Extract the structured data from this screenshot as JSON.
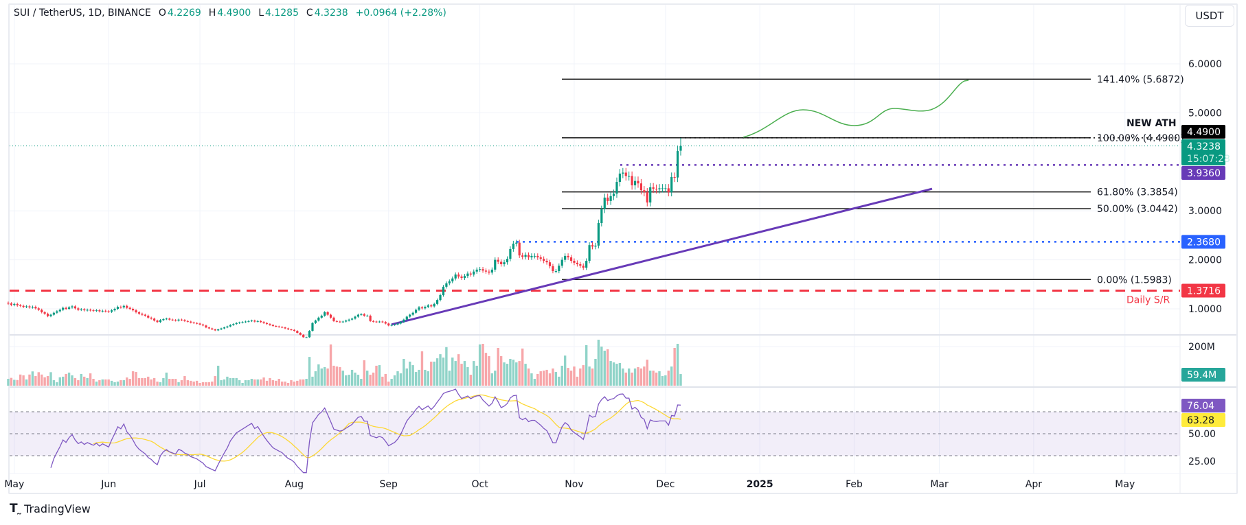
{
  "header": {
    "symbol": "SUI / TetherUS, 1D, BINANCE",
    "open_label": "O",
    "open": "4.2269",
    "high_label": "H",
    "high": "4.4900",
    "low_label": "L",
    "low": "4.1285",
    "close_label": "C",
    "close": "4.3238",
    "change": "+0.0964 (+2.28%)"
  },
  "currency_button": "USDT",
  "branding": "TradingView",
  "colors": {
    "up": "#089981",
    "down": "#f23645",
    "vol_up": "#8fd3c8",
    "vol_down": "#f7a6a9",
    "rsi": "#7e57c2",
    "rsi_ma": "#fdd835",
    "trendline": "#673ab7",
    "support_resistance": "#f23645",
    "resistance_blue": "#2962ff",
    "projection": "#4caf50"
  },
  "chart_data": {
    "type": "candlestick",
    "interval": "1D",
    "x_axis": {
      "ticks": [
        "May",
        "Jun",
        "Jul",
        "Aug",
        "Sep",
        "Oct",
        "Nov",
        "Dec",
        "2025",
        "Feb",
        "Mar",
        "Apr",
        "May"
      ]
    },
    "y_axis": {
      "ticks": [
        "6.0000",
        "5.0000",
        "3.0000",
        "2.0000",
        "1.0000"
      ],
      "range": [
        0.3,
        6.4
      ],
      "scale": "linear"
    },
    "grid": true,
    "closes": [
      1.11,
      1.08,
      1.1,
      1.07,
      1.06,
      1.04,
      1.05,
      1.03,
      1.04,
      1.01,
      0.98,
      0.93,
      0.9,
      0.85,
      0.88,
      0.92,
      0.95,
      0.98,
      1.02,
      1.0,
      1.03,
      1.05,
      1.01,
      0.98,
      0.99,
      0.97,
      0.98,
      0.97,
      0.96,
      0.97,
      0.95,
      0.96,
      0.95,
      0.94,
      0.97,
      1.0,
      1.04,
      1.03,
      1.06,
      1.02,
      1.0,
      0.97,
      0.93,
      0.9,
      0.88,
      0.86,
      0.82,
      0.8,
      0.76,
      0.73,
      0.77,
      0.79,
      0.8,
      0.78,
      0.77,
      0.76,
      0.78,
      0.77,
      0.75,
      0.74,
      0.72,
      0.71,
      0.7,
      0.68,
      0.66,
      0.62,
      0.6,
      0.58,
      0.56,
      0.58,
      0.6,
      0.62,
      0.64,
      0.67,
      0.69,
      0.71,
      0.72,
      0.73,
      0.74,
      0.75,
      0.76,
      0.74,
      0.75,
      0.73,
      0.71,
      0.69,
      0.67,
      0.65,
      0.64,
      0.63,
      0.62,
      0.6,
      0.58,
      0.57,
      0.55,
      0.51,
      0.47,
      0.42,
      0.42,
      0.55,
      0.71,
      0.76,
      0.82,
      0.86,
      0.93,
      0.88,
      0.82,
      0.75,
      0.74,
      0.73,
      0.74,
      0.76,
      0.78,
      0.8,
      0.84,
      0.88,
      0.89,
      0.86,
      0.86,
      0.75,
      0.74,
      0.73,
      0.74,
      0.73,
      0.7,
      0.66,
      0.67,
      0.68,
      0.7,
      0.73,
      0.78,
      0.84,
      0.88,
      0.92,
      0.98,
      1.03,
      1.01,
      1.04,
      1.07,
      1.05,
      1.1,
      1.18,
      1.28,
      1.45,
      1.52,
      1.56,
      1.62,
      1.7,
      1.66,
      1.63,
      1.67,
      1.72,
      1.7,
      1.76,
      1.8,
      1.81,
      1.78,
      1.76,
      1.74,
      1.8,
      2.0,
      1.96,
      1.91,
      1.95,
      2.02,
      2.22,
      2.33,
      2.35,
      2.09,
      2.06,
      2.1,
      2.05,
      2.08,
      2.08,
      2.05,
      2.02,
      1.98,
      1.95,
      1.87,
      1.77,
      1.77,
      1.88,
      2.0,
      2.08,
      2.05,
      1.98,
      1.94,
      1.91,
      1.88,
      1.84,
      1.98,
      2.3,
      2.27,
      2.29,
      2.75,
      3.03,
      3.27,
      3.2,
      3.3,
      3.35,
      3.59,
      3.76,
      3.78,
      3.71,
      3.71,
      3.52,
      3.61,
      3.56,
      3.42,
      3.38,
      3.17,
      3.48,
      3.45,
      3.44,
      3.46,
      3.46,
      3.46,
      3.38,
      3.69,
      3.68,
      4.22,
      4.3238
    ],
    "last_candle": {
      "open": 4.2269,
      "high": 4.49,
      "low": 4.1285,
      "close": 4.3238
    },
    "volume_m": [
      35,
      40,
      30,
      29,
      57,
      53,
      32,
      57,
      73,
      49,
      69,
      57,
      43,
      49,
      69,
      28,
      18,
      43,
      46,
      60,
      67,
      53,
      39,
      28,
      60,
      46,
      39,
      63,
      35,
      21,
      28,
      32,
      32,
      32,
      25,
      18,
      21,
      28,
      28,
      42,
      35,
      74,
      70,
      39,
      39,
      39,
      46,
      32,
      39,
      21,
      18,
      39,
      67,
      35,
      35,
      35,
      18,
      28,
      49,
      28,
      25,
      21,
      25,
      14,
      18,
      18,
      18,
      21,
      49,
      102,
      28,
      32,
      46,
      39,
      39,
      39,
      28,
      14,
      28,
      28,
      35,
      32,
      32,
      32,
      42,
      25,
      39,
      28,
      25,
      35,
      21,
      21,
      14,
      28,
      21,
      25,
      32,
      32,
      35,
      147,
      46,
      74,
      109,
      88,
      95,
      88,
      211,
      102,
      98,
      95,
      77,
      53,
      56,
      81,
      67,
      56,
      35,
      130,
      77,
      56,
      67,
      102,
      105,
      46,
      60,
      21,
      35,
      53,
      74,
      63,
      137,
      88,
      123,
      105,
      70,
      81,
      176,
      81,
      74,
      123,
      123,
      140,
      161,
      144,
      197,
      77,
      144,
      126,
      161,
      112,
      126,
      95,
      56,
      126,
      102,
      211,
      214,
      168,
      151,
      63,
      77,
      193,
      151,
      119,
      112,
      137,
      133,
      119,
      126,
      190,
      112,
      88,
      63,
      35,
      60,
      74,
      77,
      81,
      63,
      88,
      70,
      46,
      102,
      154,
      91,
      77,
      98,
      46,
      88,
      105,
      207,
      98,
      88,
      137,
      235,
      200,
      179,
      186,
      126,
      119,
      112,
      116,
      88,
      67,
      88,
      67,
      88,
      95,
      88,
      98,
      133,
      77,
      77,
      67,
      74,
      49,
      53,
      77,
      98,
      193,
      214,
      59.4
    ],
    "volume_axis": {
      "ticks": [
        "200M"
      ],
      "last_label": "59.4M"
    },
    "rsi": {
      "period": 14,
      "ma_period": 14,
      "last": "76.04",
      "ma_last": "63.28",
      "ticks": [
        "50.00",
        "25.00"
      ],
      "bands": [
        70,
        50,
        30
      ]
    },
    "fibonacci": [
      {
        "ratio": 1.414,
        "label": "141.40% (5.6872)",
        "price": 5.6872
      },
      {
        "ratio": 1.0,
        "label": "100.00% (4.4900)",
        "price": 4.49
      },
      {
        "ratio": 0.618,
        "label": "61.80% (3.3854)",
        "price": 3.3854
      },
      {
        "ratio": 0.5,
        "label": "50.00% (3.0442)",
        "price": 3.0442
      },
      {
        "ratio": 0.0,
        "label": "0.00% (1.5983)",
        "price": 1.5983
      }
    ],
    "annotations": {
      "ath_text": "NEW ATH",
      "sr_text": "Daily S/R"
    },
    "price_labels": [
      {
        "name": "ath",
        "text": "4.4900",
        "price": 4.49,
        "bg": "#000000",
        "fg": "#ffffff"
      },
      {
        "name": "resistance-purple",
        "text": "3.9360",
        "price": 3.936,
        "bg": "#673ab7",
        "fg": "#ffffff"
      },
      {
        "name": "resistance-blue",
        "text": "2.3680",
        "price": 2.368,
        "bg": "#2962ff",
        "fg": "#ffffff"
      },
      {
        "name": "daily-sr",
        "text": "1.3716",
        "price": 1.3716,
        "bg": "#f23645",
        "fg": "#ffffff"
      }
    ],
    "last_price": {
      "text": "4.3238",
      "countdown": "15:07:28",
      "price": 4.3238,
      "bg": "#089981"
    }
  }
}
